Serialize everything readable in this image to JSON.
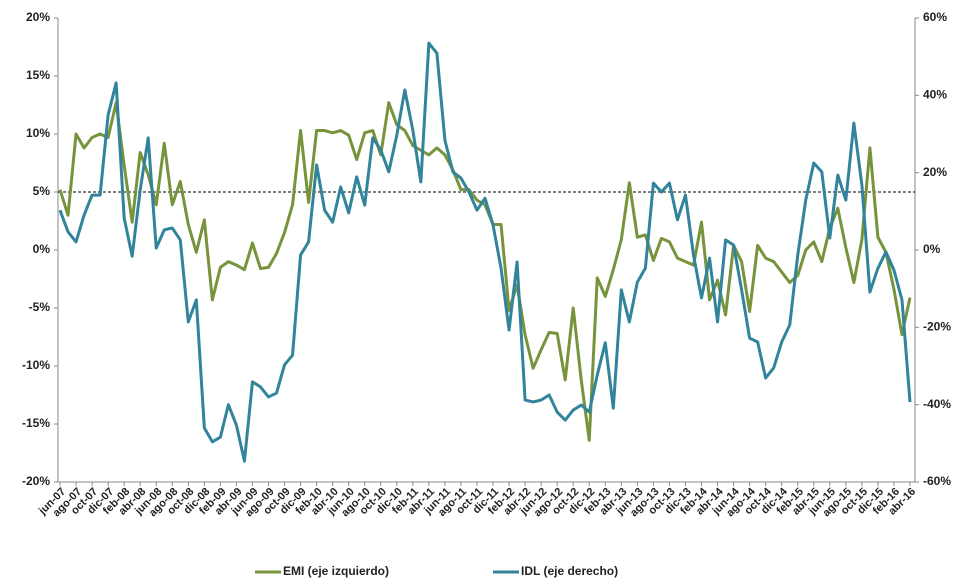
{
  "chart_data": {
    "type": "line",
    "categories": [
      "jun-07",
      null,
      "ago-07",
      null,
      "oct-07",
      null,
      "dic-07",
      null,
      "feb-08",
      null,
      "abr-08",
      null,
      "jun-08",
      null,
      "ago-08",
      null,
      "oct-08",
      null,
      "dic-08",
      null,
      "feb-09",
      null,
      "abr-09",
      null,
      "jun-09",
      null,
      "ago-09",
      null,
      "oct-09",
      null,
      "dic-09",
      null,
      "feb-10",
      null,
      "abr-10",
      null,
      "jun-10",
      null,
      "ago-10",
      null,
      "oct-10",
      null,
      "dic-10",
      null,
      "feb-11",
      null,
      "abr-11",
      null,
      "jun-11",
      null,
      "ago-11",
      null,
      "oct-11",
      null,
      "dic-11",
      null,
      "feb-12",
      null,
      "abr-12",
      null,
      "jun-12",
      null,
      "ago-12",
      null,
      "oct-12",
      null,
      "dic-12",
      null,
      "feb-13",
      null,
      "abr-13",
      null,
      "jun-13",
      null,
      "ago-13",
      null,
      "oct-13",
      null,
      "dic-13",
      null,
      "feb-14",
      null,
      "abr-14",
      null,
      "jun-14",
      null,
      "ago-14",
      null,
      "oct-14",
      null,
      "dic-14",
      null,
      "feb-15",
      null,
      "abr-15",
      null,
      "jun-15",
      null,
      "ago-15",
      null,
      "oct-15",
      null,
      "dic-15",
      null,
      "feb-16",
      null,
      "abr-16"
    ],
    "series": [
      {
        "name": "EMI (eje izquierdo)",
        "color": "#77933c",
        "axis": "y",
        "values": [
          5.2,
          3,
          10,
          8.8,
          9.7,
          10,
          9.7,
          12.7,
          7.3,
          2.4,
          8.4,
          6.5,
          3.9,
          9.2,
          3.9,
          5.9,
          2.2,
          -0.2,
          2.6,
          -4.3,
          -1.5,
          -1,
          -1.3,
          -1.7,
          0.6,
          -1.6,
          -1.5,
          -0.3,
          1.5,
          3.9,
          10.3,
          4.1,
          10.3,
          10.3,
          10.1,
          10.3,
          9.9,
          7.8,
          10.1,
          10.3,
          8.2,
          12.7,
          10.8,
          10.3,
          9,
          8.6,
          8.2,
          8.8,
          8.2,
          6.9,
          5.2,
          5.2,
          4.3,
          3.9,
          2.2,
          2.2,
          -5.2,
          -3,
          -7.3,
          -10.2,
          -8.6,
          -7.1,
          -7.2,
          -11.2,
          -5,
          -11.2,
          -16.4,
          -2.4,
          -4,
          -1.7,
          0.9,
          5.8,
          1.1,
          1.3,
          -0.9,
          1,
          0.7,
          -0.7,
          -1,
          -1.3,
          2.4,
          -4.3,
          -2.6,
          -5.6,
          0.4,
          -1,
          -5.3,
          0.4,
          -0.7,
          -1,
          -1.9,
          -2.8,
          -2.2,
          0,
          0.7,
          -1,
          1.9,
          3.6,
          0.2,
          -2.8,
          0.9,
          8.8,
          1.1,
          -0.2,
          -3.4,
          -7.3,
          -4.1
        ]
      },
      {
        "name": "IDL (eje derecho)",
        "color": "#31849b",
        "axis": "y2",
        "values": [
          10.3,
          4.7,
          2.1,
          9,
          14.2,
          14.2,
          34.9,
          43.2,
          8.3,
          -1.6,
          15.5,
          29,
          0.5,
          5.2,
          5.7,
          2.6,
          -18.6,
          -12.9,
          -46,
          -49.6,
          -48.4,
          -40,
          -45.3,
          -54.6,
          -34.1,
          -35.4,
          -38,
          -37,
          -29.7,
          -27.2,
          -1.3,
          2.1,
          22,
          10.3,
          7.2,
          16.3,
          9.6,
          18.9,
          11.6,
          29,
          25.9,
          20.2,
          29.7,
          41.4,
          31,
          17.6,
          53.5,
          50.9,
          28.4,
          20.2,
          18.6,
          15,
          10.3,
          13.4,
          6.5,
          -4.7,
          -20.7,
          -3.1,
          -38.8,
          -39.3,
          -38.8,
          -37.5,
          -41.9,
          -44,
          -41.4,
          -40.1,
          -41.9,
          -32.3,
          -24,
          -40.9,
          -10.3,
          -18.6,
          -8.3,
          -4.7,
          17.3,
          15,
          17.3,
          7.8,
          14.2,
          -1.3,
          -12.4,
          -2.1,
          -18.6,
          2.6,
          1.3,
          -10.3,
          -22.8,
          -23.8,
          -33.1,
          -30.5,
          -23.8,
          -19.4,
          -1.3,
          12.9,
          22.5,
          20.2,
          3.1,
          19.4,
          12.9,
          32.8,
          16.8,
          -10.9,
          -4.7,
          -0.5,
          -5.2,
          -12.9,
          -39.3
        ]
      }
    ],
    "ylim": [
      -20,
      20
    ],
    "yticks": [
      {
        "value": -20,
        "label": "-20%"
      },
      {
        "value": -15,
        "label": "-15%"
      },
      {
        "value": -10,
        "label": "-10%"
      },
      {
        "value": -5,
        "label": "-5%"
      },
      {
        "value": 0,
        "label": "0%"
      },
      {
        "value": 5,
        "label": "5%"
      },
      {
        "value": 10,
        "label": "10%"
      },
      {
        "value": 15,
        "label": "15%"
      },
      {
        "value": 20,
        "label": "20%"
      }
    ],
    "y2lim": [
      -60,
      60
    ],
    "y2ticks": [
      {
        "value": -60,
        "label": "-60%"
      },
      {
        "value": -40,
        "label": "-40%"
      },
      {
        "value": -20,
        "label": "-20%"
      },
      {
        "value": 0,
        "label": "0%"
      },
      {
        "value": 20,
        "label": "20%"
      },
      {
        "value": 40,
        "label": "40%"
      },
      {
        "value": 60,
        "label": "60%"
      }
    ],
    "reference_line": 5,
    "legend": "bottom"
  }
}
